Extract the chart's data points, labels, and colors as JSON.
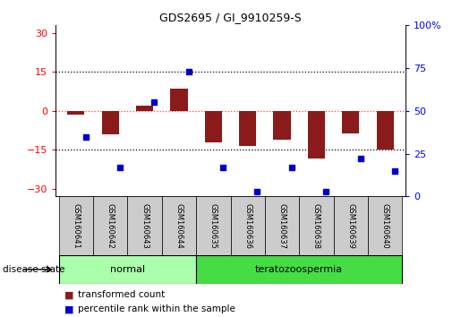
{
  "title": "GDS2695 / GI_9910259-S",
  "samples": [
    "GSM160641",
    "GSM160642",
    "GSM160643",
    "GSM160644",
    "GSM160635",
    "GSM160636",
    "GSM160637",
    "GSM160638",
    "GSM160639",
    "GSM160640"
  ],
  "transformed_count": [
    -1.5,
    -9.0,
    2.0,
    8.5,
    -12.0,
    -13.5,
    -11.0,
    -18.5,
    -8.5,
    -15.0
  ],
  "percentile_rank": [
    35,
    17,
    55,
    73,
    17,
    3,
    17,
    3,
    22,
    15
  ],
  "ylim_left": [
    -33,
    33
  ],
  "ylim_right": [
    0,
    100
  ],
  "yticks_left": [
    -30,
    -15,
    0,
    15,
    30
  ],
  "yticks_right": [
    0,
    25,
    50,
    75,
    100
  ],
  "bar_color": "#8B1A1A",
  "dot_color": "#0000CD",
  "normal_color": "#AAFFAA",
  "terato_color": "#44DD44",
  "zero_line_color": "#FF4444",
  "grid_color": "#000000",
  "label_tc": "transformed count",
  "label_pr": "percentile rank within the sample",
  "disease_label": "disease state",
  "normal_label": "normal",
  "terato_label": "teratozoospermia",
  "right_ytick_labels": [
    "0",
    "25",
    "50",
    "75",
    "100%"
  ]
}
